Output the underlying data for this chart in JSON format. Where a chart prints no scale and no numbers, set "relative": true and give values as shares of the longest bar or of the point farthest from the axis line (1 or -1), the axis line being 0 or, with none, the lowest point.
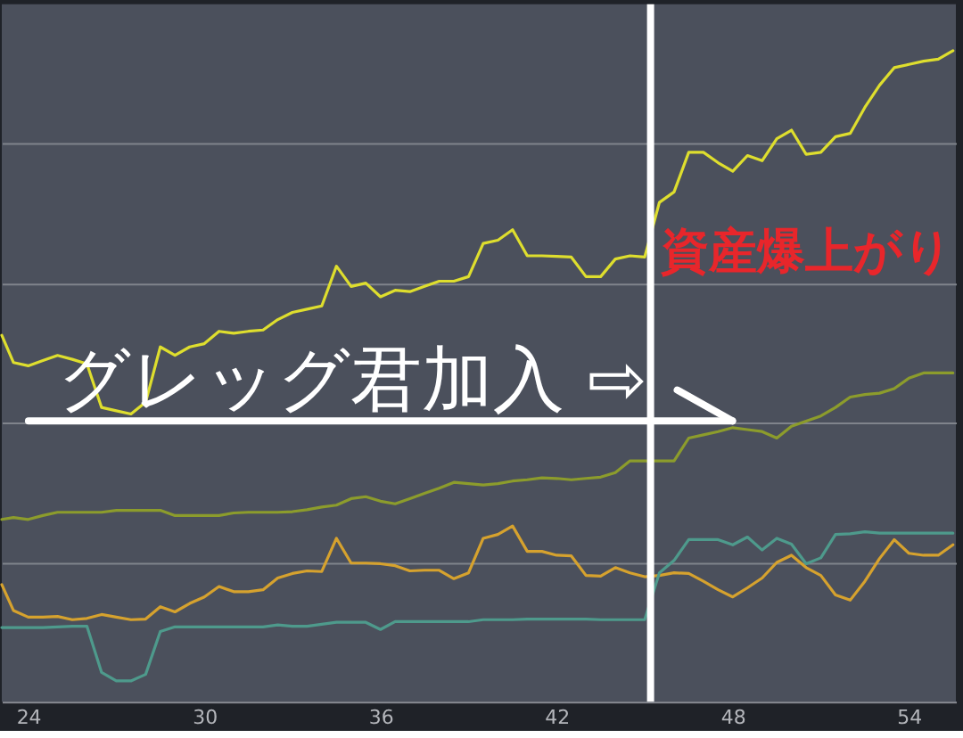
{
  "chart_data": {
    "type": "line",
    "relative": true,
    "x": [
      23.1,
      23.5,
      24,
      24.5,
      25,
      25.5,
      26,
      26.5,
      27,
      27.5,
      28,
      28.5,
      29,
      29.5,
      30,
      30.5,
      31,
      31.5,
      32,
      32.5,
      33,
      33.5,
      34,
      34.5,
      35,
      35.5,
      36,
      36.5,
      37,
      37.5,
      38,
      38.5,
      39,
      39.5,
      40,
      40.5,
      41,
      41.5,
      42,
      42.5,
      43,
      43.5,
      44,
      44.5,
      45,
      45.5,
      46,
      46.5,
      47,
      47.5,
      48,
      48.5,
      49,
      49.5,
      50,
      50.5,
      51,
      51.5,
      52,
      52.5,
      53,
      53.5,
      54,
      54.5,
      55,
      55.5
    ],
    "xlim": [
      23.1,
      55.6
    ],
    "xticks": [
      24,
      30,
      36,
      42,
      48,
      54
    ],
    "series": [
      {
        "color": "#dede2e",
        "values": [
          0.563,
          0.521,
          0.516,
          0.524,
          0.532,
          0.526,
          0.519,
          0.452,
          0.447,
          0.442,
          0.46,
          0.545,
          0.532,
          0.545,
          0.55,
          0.569,
          0.566,
          0.569,
          0.571,
          0.587,
          0.598,
          0.603,
          0.608,
          0.669,
          0.638,
          0.643,
          0.622,
          0.632,
          0.63,
          0.638,
          0.646,
          0.646,
          0.653,
          0.704,
          0.709,
          0.725,
          0.685,
          0.685,
          0.684,
          0.683,
          0.653,
          0.653,
          0.68,
          0.685,
          0.683,
          0.767,
          0.783,
          0.844,
          0.844,
          0.828,
          0.815,
          0.839,
          0.831,
          0.865,
          0.878,
          0.841,
          0.844,
          0.868,
          0.873,
          0.913,
          0.947,
          0.974,
          0.979,
          0.984,
          0.987,
          1.0
        ]
      },
      {
        "color": "#8c9c2c",
        "values": [
          0.28,
          0.283,
          0.28,
          0.286,
          0.291,
          0.291,
          0.291,
          0.291,
          0.294,
          0.294,
          0.294,
          0.294,
          0.286,
          0.286,
          0.286,
          0.286,
          0.29,
          0.291,
          0.291,
          0.291,
          0.292,
          0.295,
          0.299,
          0.302,
          0.312,
          0.315,
          0.308,
          0.304,
          0.312,
          0.32,
          0.328,
          0.337,
          0.335,
          0.333,
          0.335,
          0.339,
          0.341,
          0.344,
          0.343,
          0.341,
          0.343,
          0.345,
          0.352,
          0.37,
          0.37,
          0.37,
          0.37,
          0.405,
          0.41,
          0.415,
          0.421,
          0.418,
          0.415,
          0.405,
          0.423,
          0.431,
          0.439,
          0.452,
          0.468,
          0.472,
          0.474,
          0.481,
          0.497,
          0.505,
          0.505,
          0.505
        ]
      },
      {
        "color": "#d6a22e",
        "values": [
          0.18,
          0.14,
          0.13,
          0.13,
          0.131,
          0.126,
          0.128,
          0.134,
          0.13,
          0.126,
          0.127,
          0.146,
          0.138,
          0.151,
          0.161,
          0.177,
          0.169,
          0.169,
          0.172,
          0.19,
          0.197,
          0.201,
          0.2,
          0.251,
          0.213,
          0.213,
          0.212,
          0.209,
          0.201,
          0.202,
          0.202,
          0.189,
          0.198,
          0.251,
          0.257,
          0.27,
          0.231,
          0.231,
          0.225,
          0.224,
          0.194,
          0.193,
          0.206,
          0.198,
          0.192,
          0.194,
          0.198,
          0.197,
          0.185,
          0.172,
          0.161,
          0.175,
          0.19,
          0.214,
          0.225,
          0.206,
          0.194,
          0.164,
          0.156,
          0.185,
          0.22,
          0.249,
          0.228,
          0.225,
          0.225,
          0.241
        ]
      },
      {
        "color": "#4e9a8c",
        "values": [
          0.114,
          0.114,
          0.114,
          0.114,
          0.115,
          0.116,
          0.116,
          0.045,
          0.032,
          0.032,
          0.042,
          0.108,
          0.115,
          0.115,
          0.115,
          0.115,
          0.115,
          0.115,
          0.115,
          0.118,
          0.116,
          0.116,
          0.119,
          0.122,
          0.122,
          0.122,
          0.111,
          0.123,
          0.123,
          0.123,
          0.123,
          0.123,
          0.123,
          0.126,
          0.126,
          0.126,
          0.127,
          0.127,
          0.127,
          0.127,
          0.127,
          0.126,
          0.126,
          0.126,
          0.126,
          0.198,
          0.217,
          0.249,
          0.249,
          0.249,
          0.241,
          0.253,
          0.233,
          0.251,
          0.242,
          0.212,
          0.221,
          0.257,
          0.258,
          0.261,
          0.259,
          0.259,
          0.259,
          0.259,
          0.259,
          0.259
        ]
      }
    ],
    "grid": "y",
    "tick_labels": "x",
    "ref_lines": [
      {
        "axis": "x",
        "value": 45.2,
        "label": "グレッグ君加入 ⇨",
        "color": "#ffffff"
      }
    ],
    "annotations": [
      "資産爆上がり"
    ]
  }
}
